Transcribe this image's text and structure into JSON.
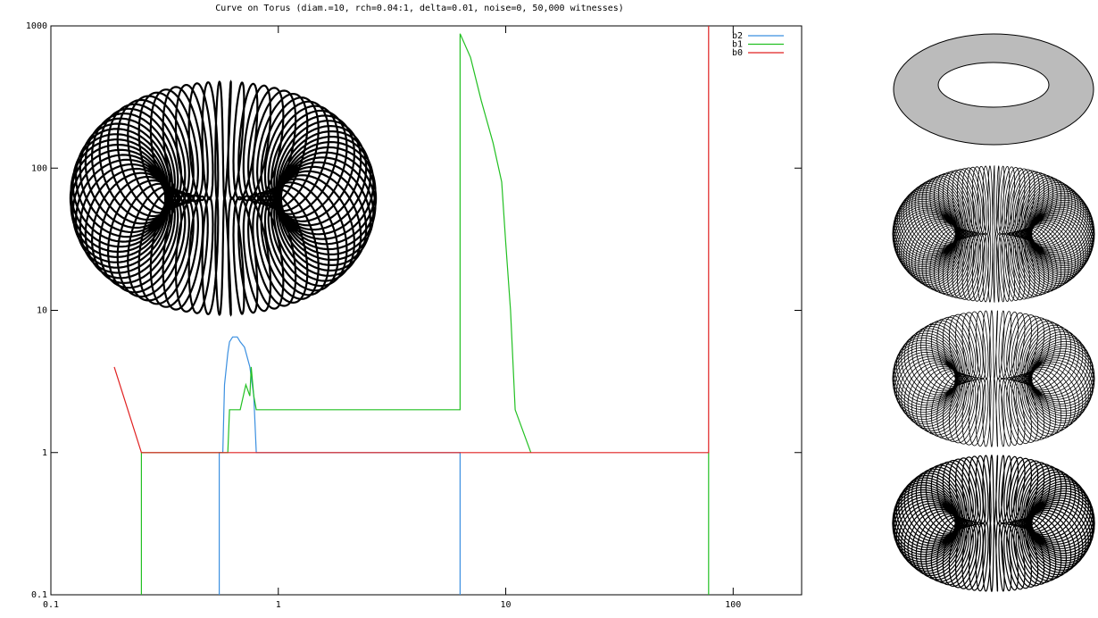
{
  "chart_data": {
    "type": "line",
    "title": "Curve on Torus (diam.=10, rch=0.04:1, delta=0.01, noise=0, 50,000 witnesses)",
    "log_x": true,
    "log_y": true,
    "xlim": [
      0.1,
      200
    ],
    "ylim": [
      0.1,
      1000
    ],
    "xticks": [
      0.1,
      1,
      10,
      100
    ],
    "yticks": [
      0.1,
      1,
      10,
      100,
      1000
    ],
    "legend": "upper right",
    "series": [
      {
        "name": "b2",
        "color": "#3a8fe0",
        "x": [
          0.55,
          0.55,
          0.57,
          0.58,
          0.6,
          0.61,
          0.63,
          0.66,
          0.68,
          0.71,
          0.75,
          0.78,
          0.8,
          6.3,
          6.3
        ],
        "values": [
          0.1,
          1,
          1,
          3,
          5,
          6,
          6.5,
          6.5,
          6,
          5.5,
          4,
          2.5,
          1,
          1,
          0.1
        ]
      },
      {
        "name": "b1",
        "color": "#22c022",
        "x": [
          0.25,
          0.25,
          0.6,
          0.61,
          0.68,
          0.72,
          0.75,
          0.76,
          0.78,
          0.8,
          6.3,
          6.3,
          7,
          7.8,
          8.8,
          9.6,
          10,
          10.5,
          11,
          12.9,
          78,
          78,
          78
        ],
        "values": [
          0.1,
          1,
          1,
          2,
          2,
          3,
          2.5,
          4,
          2.5,
          2,
          2,
          880,
          600,
          300,
          150,
          80,
          30,
          10,
          2,
          1,
          null,
          0.1,
          1
        ]
      },
      {
        "name": "b0",
        "color": "#e02020",
        "x": [
          0.19,
          0.25,
          78,
          78
        ],
        "values": [
          4,
          1,
          1,
          1000
        ]
      }
    ]
  }
}
